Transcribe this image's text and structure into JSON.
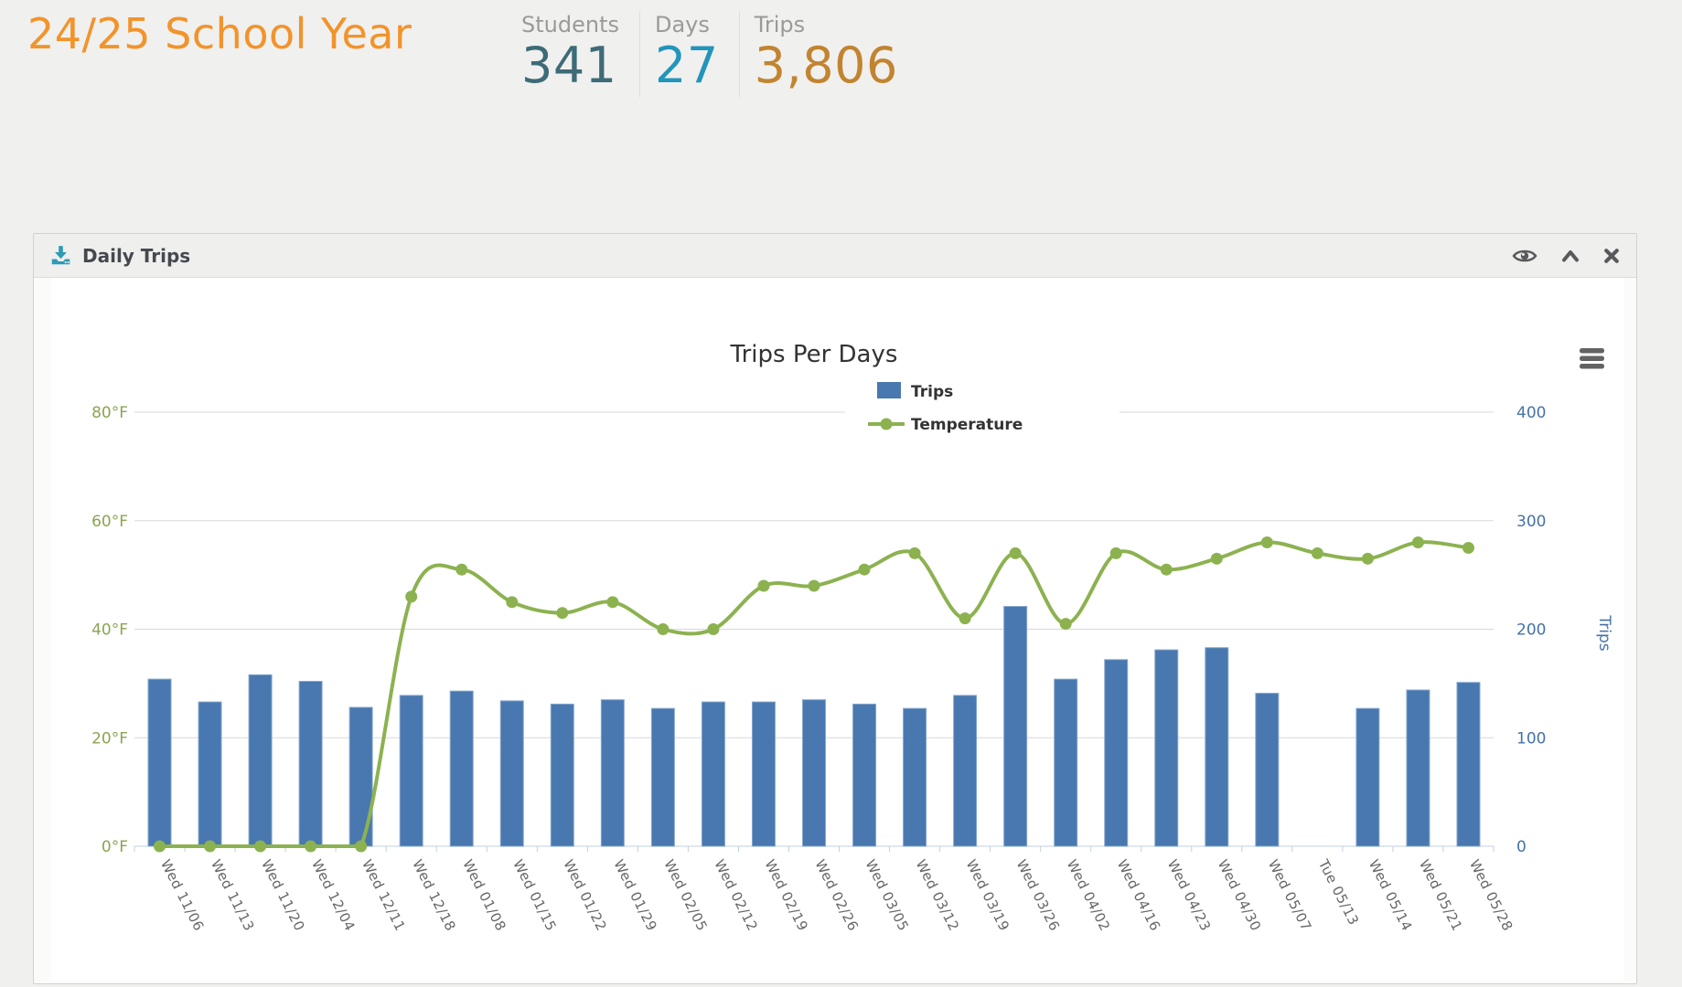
{
  "page": {
    "title": "24/25 School Year",
    "background": "#f0f0ef",
    "stats": [
      {
        "label": "Students",
        "value": "341",
        "color": "#3d6b77"
      },
      {
        "label": "Days",
        "value": "27",
        "color": "#2395ba"
      },
      {
        "label": "Trips",
        "value": "3,806",
        "color": "#c28430"
      }
    ]
  },
  "panel": {
    "title": "Daily Trips",
    "icons": [
      "download-icon",
      "eye-icon",
      "collapse-icon",
      "close-icon"
    ]
  },
  "chart_data": {
    "type": "bar",
    "subtype": "dual-axis column + spline overlay",
    "title": "Trips Per Days",
    "title_color": "#333333",
    "grid": true,
    "gridline_color": "#d8d8d8",
    "axis_line_color": "#c0d0e0",
    "x_label_color": "#666666",
    "legend": {
      "position": "top-center",
      "layout": "vertical",
      "items": [
        "Trips",
        "Temperature"
      ]
    },
    "categories": [
      "Wed 11/06",
      "Wed 11/13",
      "Wed 11/20",
      "Wed 12/04",
      "Wed 12/11",
      "Wed 12/18",
      "Wed 01/08",
      "Wed 01/15",
      "Wed 01/22",
      "Wed 01/29",
      "Wed 02/05",
      "Wed 02/12",
      "Wed 02/19",
      "Wed 02/26",
      "Wed 03/05",
      "Wed 03/12",
      "Wed 03/19",
      "Wed 03/26",
      "Wed 04/02",
      "Wed 04/16",
      "Wed 04/23",
      "Wed 04/30",
      "Wed 05/07",
      "Tue 05/13",
      "Wed 05/14",
      "Wed 05/21",
      "Wed 05/28"
    ],
    "series": [
      {
        "name": "Trips",
        "type": "column",
        "axis": "right",
        "color": "#4878af",
        "border_color": "#87a7ce",
        "values": [
          154,
          133,
          158,
          152,
          128,
          139,
          143,
          134,
          131,
          135,
          127,
          133,
          133,
          135,
          131,
          127,
          139,
          221,
          154,
          172,
          181,
          183,
          141,
          0,
          127,
          144,
          151
        ]
      },
      {
        "name": "Temperature",
        "type": "spline",
        "axis": "left",
        "color": "#8cb250",
        "values": [
          0,
          0,
          0,
          0,
          0,
          46,
          51,
          45,
          43,
          45,
          40,
          40,
          48,
          48,
          51,
          54,
          42,
          54,
          41,
          54,
          51,
          53,
          56,
          54,
          53,
          56,
          55
        ]
      }
    ],
    "y_axis_left": {
      "unit": "°F",
      "min": 0,
      "max": 80,
      "tick_interval": 20,
      "labels": [
        "0°F",
        "20°F",
        "40°F",
        "60°F",
        "80°F"
      ],
      "label_color": "#89a551"
    },
    "y_axis_right": {
      "title": "Trips",
      "min": 0,
      "max": 400,
      "tick_interval": 100,
      "labels": [
        "0",
        "100",
        "200",
        "300",
        "400"
      ],
      "label_color": "#4572a7"
    }
  }
}
